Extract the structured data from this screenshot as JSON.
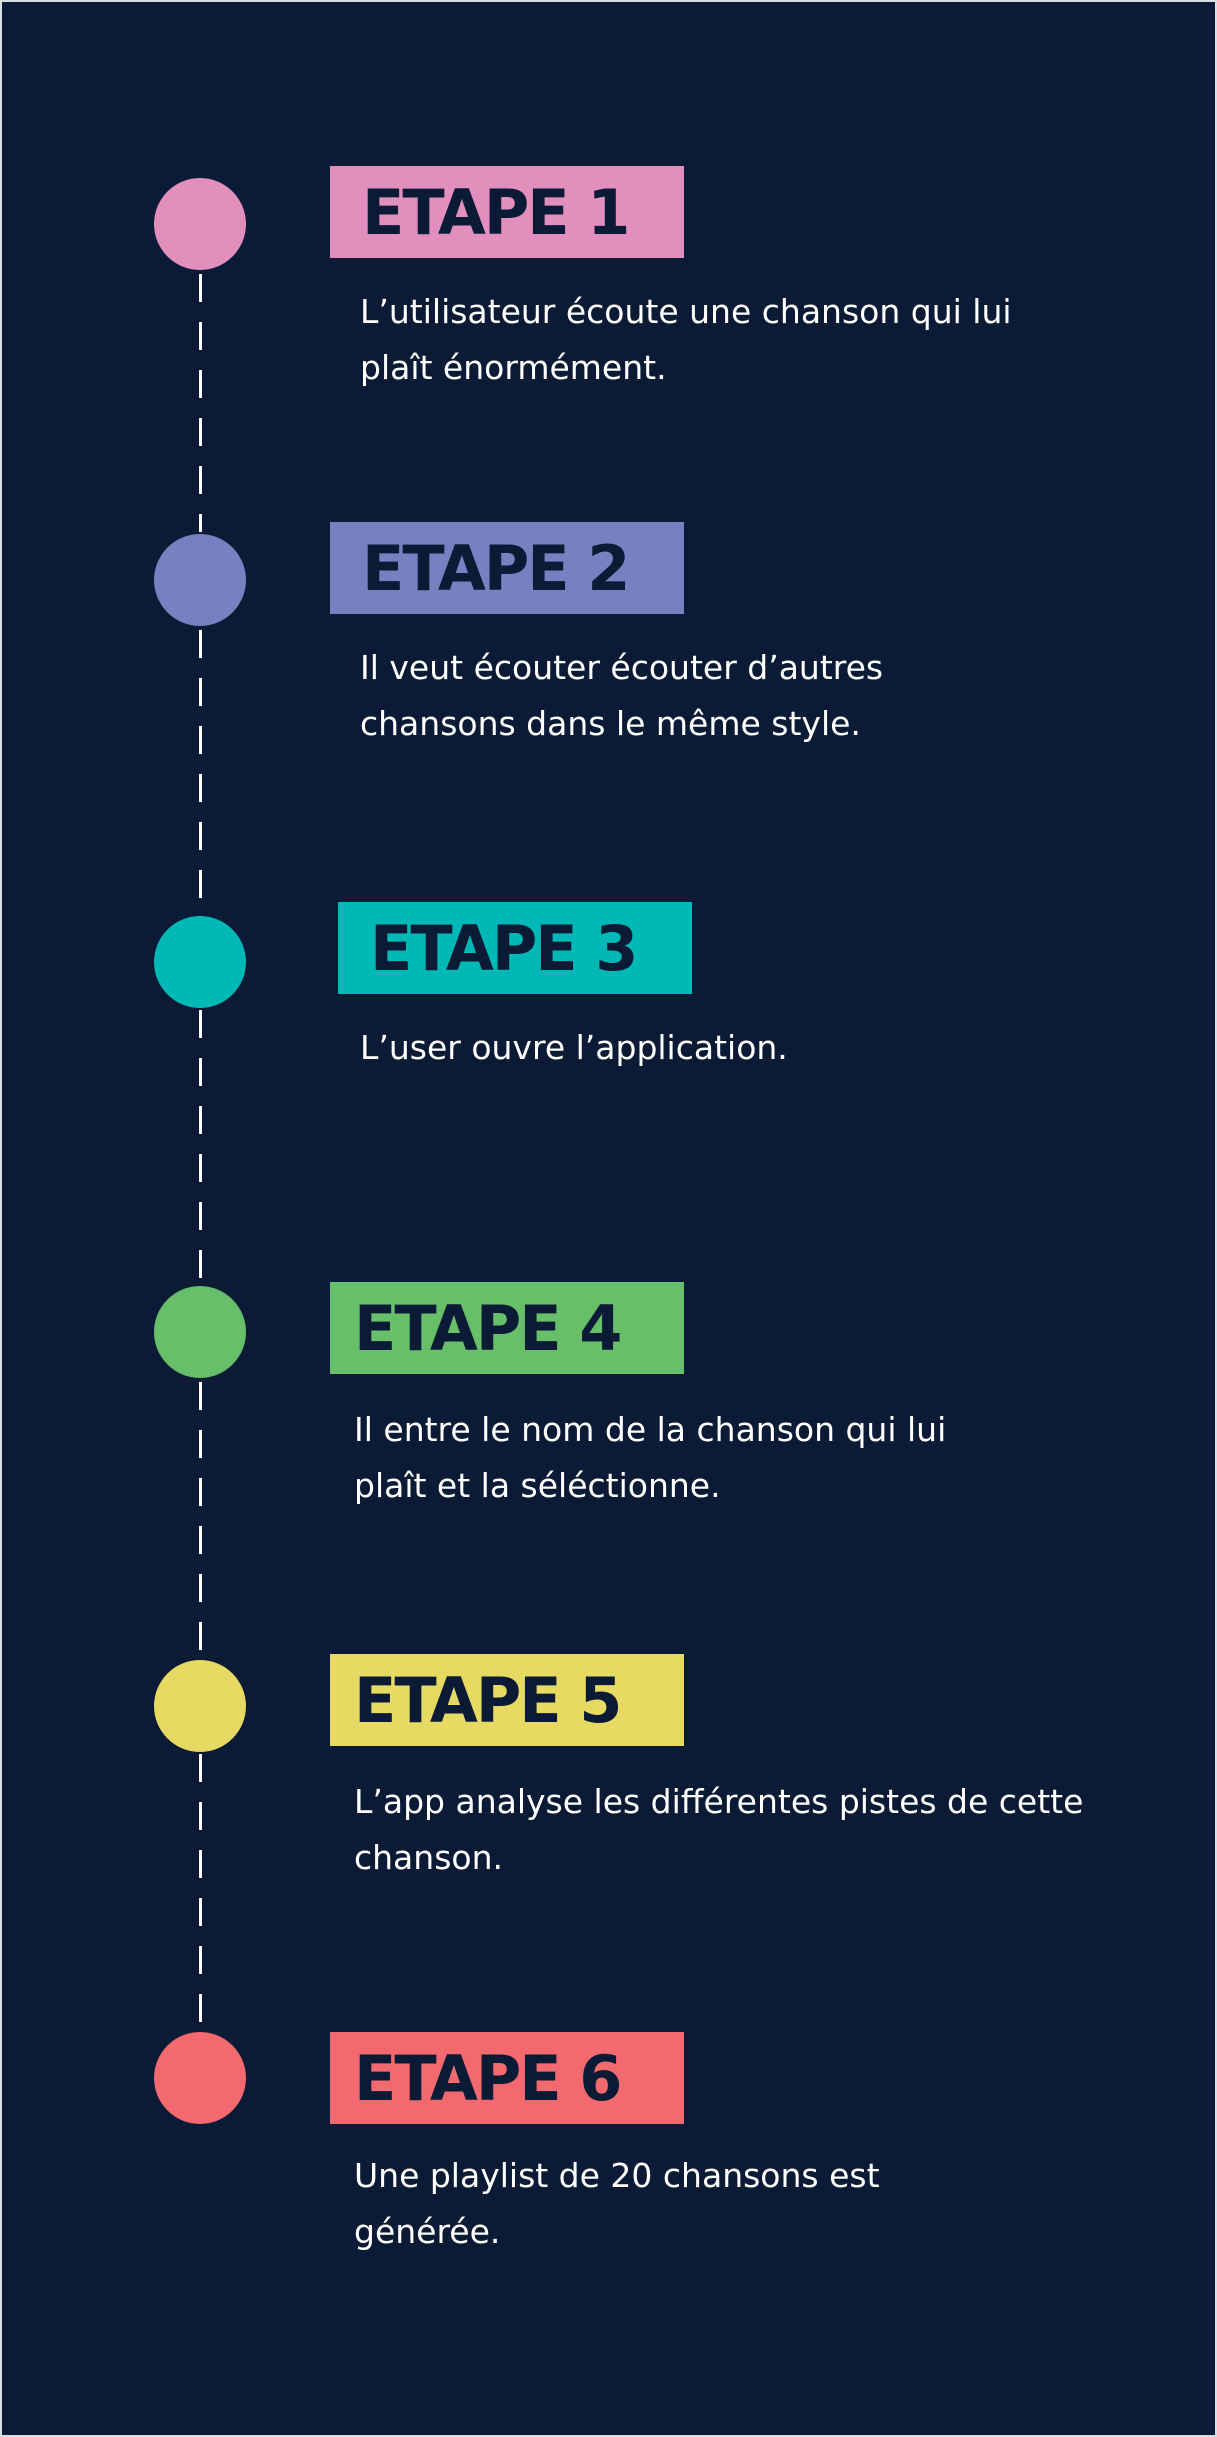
{
  "colors": {
    "background": "#0b1b35",
    "text": "#ffffff",
    "title_text": "#0b1b35",
    "line": "#ffffff"
  },
  "steps": [
    {
      "title": "ETAPE 1",
      "description": "L’utilisateur écoute une chanson qui lui plaît énormément.",
      "color": "#e38fbe"
    },
    {
      "title": "ETAPE 2",
      "description": "Il veut écouter écouter d’autres chansons dans le même style.",
      "color": "#7681c1"
    },
    {
      "title": "ETAPE 3",
      "description": "L’user ouvre l’application.",
      "color": "#00b8b6"
    },
    {
      "title": "ETAPE 4",
      "description": "Il entre le nom de la chanson qui lui plaît et la séléctionne.",
      "color": "#67bf69"
    },
    {
      "title": "ETAPE 5",
      "description": "L’app analyse les différentes pistes de cette chanson.",
      "color": "#e6da63"
    },
    {
      "title": "ETAPE 6",
      "description": "Une playlist de 20 chansons est générée.",
      "color": "#f26a70"
    }
  ]
}
